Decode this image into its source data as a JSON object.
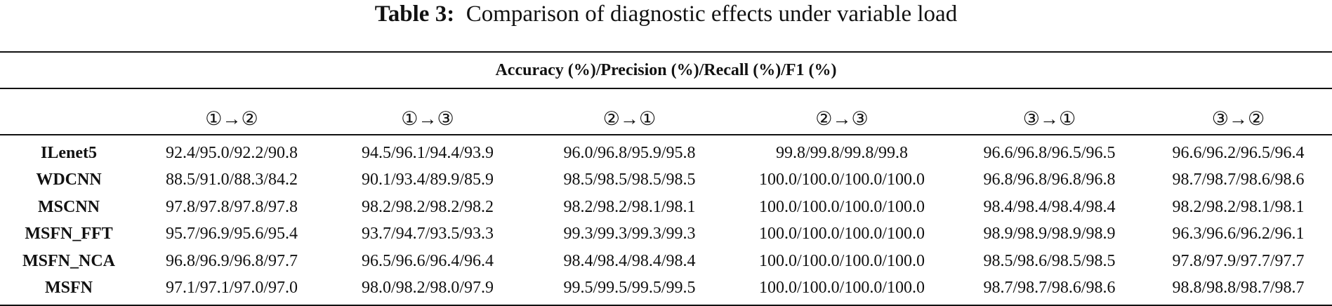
{
  "caption": {
    "label": "Table 3:",
    "text": "Comparison of diagnostic effects under variable load"
  },
  "table": {
    "group_header": "Accuracy (%)/Precision (%)/Recall (%)/F1 (%)",
    "columns": [
      "",
      "①→②",
      "①→③",
      "②→①",
      "②→③",
      "③→①",
      "③→②"
    ],
    "rows": [
      {
        "model": "ILenet5",
        "values": [
          "92.4/95.0/92.2/90.8",
          "94.5/96.1/94.4/93.9",
          "96.0/96.8/95.9/95.8",
          "99.8/99.8/99.8/99.8",
          "96.6/96.8/96.5/96.5",
          "96.6/96.2/96.5/96.4"
        ]
      },
      {
        "model": "WDCNN",
        "values": [
          "88.5/91.0/88.3/84.2",
          "90.1/93.4/89.9/85.9",
          "98.5/98.5/98.5/98.5",
          "100.0/100.0/100.0/100.0",
          "96.8/96.8/96.8/96.8",
          "98.7/98.7/98.6/98.6"
        ]
      },
      {
        "model": "MSCNN",
        "values": [
          "97.8/97.8/97.8/97.8",
          "98.2/98.2/98.2/98.2",
          "98.2/98.2/98.1/98.1",
          "100.0/100.0/100.0/100.0",
          "98.4/98.4/98.4/98.4",
          "98.2/98.2/98.1/98.1"
        ]
      },
      {
        "model": "MSFN_FFT",
        "values": [
          "95.7/96.9/95.6/95.4",
          "93.7/94.7/93.5/93.3",
          "99.3/99.3/99.3/99.3",
          "100.0/100.0/100.0/100.0",
          "98.9/98.9/98.9/98.9",
          "96.3/96.6/96.2/96.1"
        ]
      },
      {
        "model": "MSFN_NCA",
        "values": [
          "96.8/96.9/96.8/97.7",
          "96.5/96.6/96.4/96.4",
          "98.4/98.4/98.4/98.4",
          "100.0/100.0/100.0/100.0",
          "98.5/98.6/98.5/98.5",
          "97.8/97.9/97.7/97.7"
        ]
      },
      {
        "model": "MSFN",
        "values": [
          "97.1/97.1/97.0/97.0",
          "98.0/98.2/98.0/97.9",
          "99.5/99.5/99.5/99.5",
          "100.0/100.0/100.0/100.0",
          "98.7/98.7/98.6/98.6",
          "98.8/98.8/98.7/98.7"
        ]
      }
    ]
  }
}
